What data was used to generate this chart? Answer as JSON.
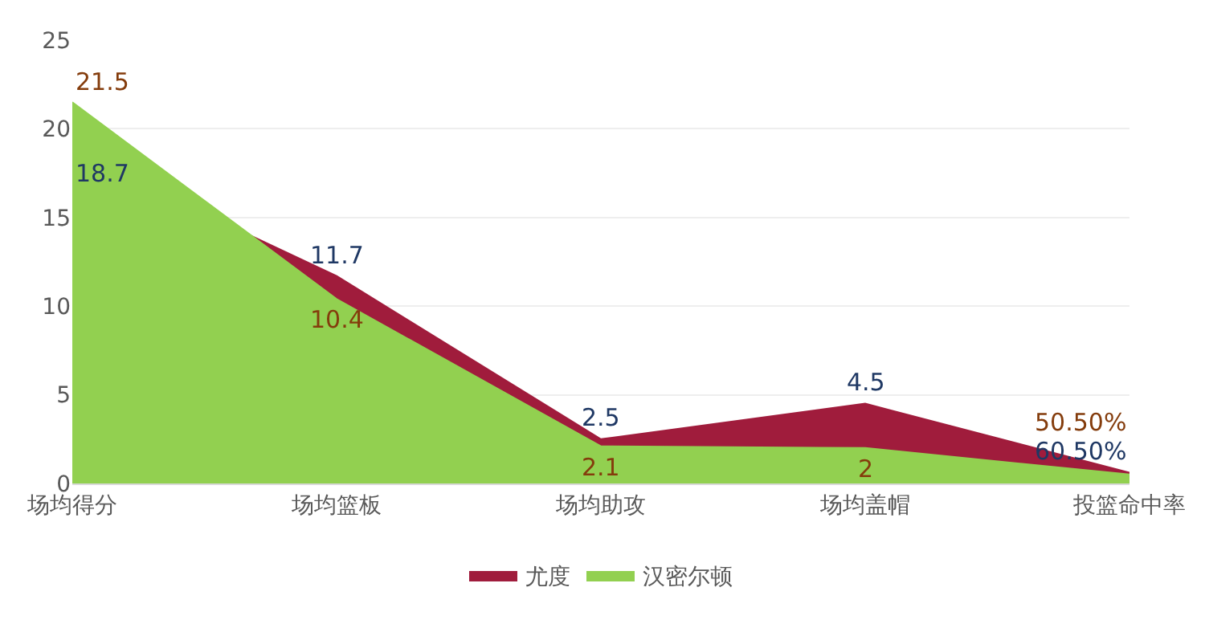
{
  "chart_data": {
    "type": "area",
    "categories": [
      "场均得分",
      "场均篮板",
      "场均助攻",
      "场均盖帽",
      "投篮命中率"
    ],
    "series": [
      {
        "name": "尤度",
        "color": "#a01c3c",
        "values": [
          18.7,
          11.7,
          2.5,
          4.5,
          0.605
        ],
        "value_labels": [
          "18.7",
          "11.7",
          "2.5",
          "4.5",
          "60.50%"
        ]
      },
      {
        "name": "汉密尔顿",
        "color": "#92d050",
        "values": [
          21.5,
          10.4,
          2.1,
          2,
          0.505
        ],
        "value_labels": [
          "21.5",
          "10.4",
          "2.1",
          "2",
          "50.50%"
        ]
      }
    ],
    "ylim": [
      0,
      25
    ],
    "yticks": [
      0,
      5,
      10,
      15,
      20,
      25
    ],
    "grid": "y",
    "legend": "bottom"
  }
}
